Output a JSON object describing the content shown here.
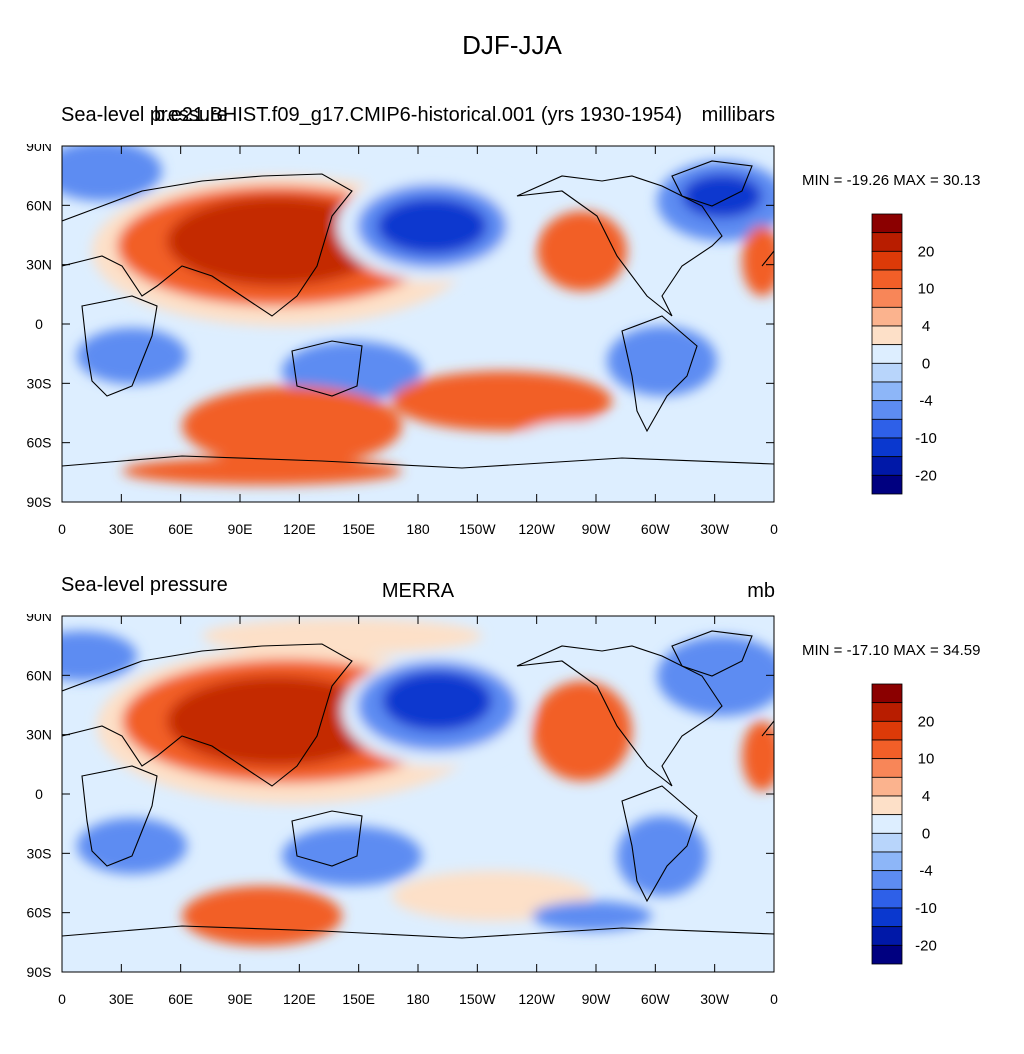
{
  "title": "DJF-JJA",
  "panels": [
    {
      "left_title": "Sea-level pressure",
      "center_title": "b.e21.BHIST.f09_g17.CMIP6-historical.001 (yrs 1930-1954)",
      "right_title": "millibars",
      "minmax": "MIN = -19.26 MAX =  30.13"
    },
    {
      "left_title": "Sea-level pressure",
      "center_title": "MERRA",
      "right_title": "mb",
      "minmax": "MIN = -17.10 MAX =  34.59"
    }
  ],
  "axes": {
    "lat_ticks": [
      "90N",
      "60N",
      "30N",
      "0",
      "30S",
      "60S",
      "90S"
    ],
    "lon_ticks": [
      "0",
      "30E",
      "60E",
      "90E",
      "120E",
      "150E",
      "180",
      "150W",
      "120W",
      "90W",
      "60W",
      "30W",
      "0"
    ]
  },
  "colorbar": {
    "labels": [
      "20",
      "10",
      "4",
      "0",
      "-4",
      "-10",
      "-20"
    ],
    "colors": [
      "#8b0000",
      "#b81d00",
      "#dd3a08",
      "#f25f28",
      "#f88658",
      "#fbb38e",
      "#fde0c8",
      "#ddeeff",
      "#b8d5fb",
      "#8db6f8",
      "#5d8cf2",
      "#2e60e8",
      "#0a38cf",
      "#0018a8",
      "#000080"
    ]
  },
  "colors": {
    "positive_strong": "#c42b00",
    "positive": "#f25f28",
    "positive_weak": "#fde0c8",
    "negative_weak": "#ddeeff",
    "negative": "#5d8cf2",
    "negative_strong": "#0a38cf"
  }
}
